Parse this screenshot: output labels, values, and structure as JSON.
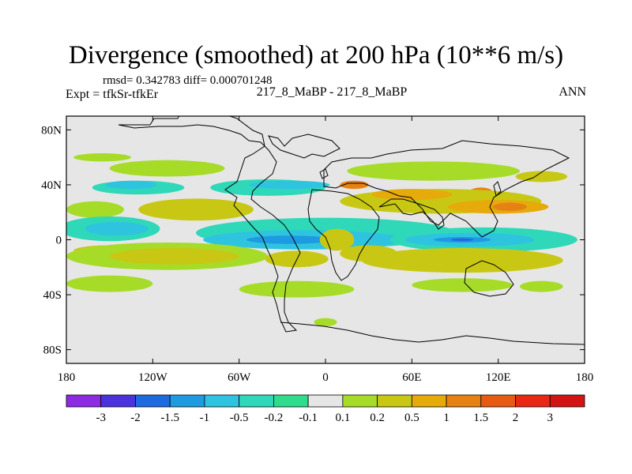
{
  "chart_data": {
    "type": "heatmap",
    "title": "Divergence (smoothed) at 200 hPa (10**6 m/s)",
    "stats_line": "rmsd= 0.342783 diff= 0.000701248",
    "left_label": "Expt = tfkSr-tfkEr",
    "center_label": "217_8_MaBP - 217_8_MaBP",
    "season_label": "ANN",
    "x_ticks": [
      {
        "value": -180,
        "label": "180"
      },
      {
        "value": -120,
        "label": "120W"
      },
      {
        "value": -60,
        "label": "60W"
      },
      {
        "value": 0,
        "label": "0"
      },
      {
        "value": 60,
        "label": "60E"
      },
      {
        "value": 120,
        "label": "120E"
      },
      {
        "value": 180,
        "label": "180"
      }
    ],
    "y_ticks": [
      {
        "value": 80,
        "label": "80N"
      },
      {
        "value": 40,
        "label": "40N"
      },
      {
        "value": 0,
        "label": "0"
      },
      {
        "value": -40,
        "label": "40S"
      },
      {
        "value": -80,
        "label": "80S"
      }
    ],
    "xlim": [
      -180,
      180
    ],
    "ylim": [
      -90,
      90
    ],
    "colorbar": {
      "labels": [
        "-3",
        "-2",
        "-1.5",
        "-1",
        "-0.5",
        "-0.2",
        "-0.1",
        "0.1",
        "0.2",
        "0.5",
        "1",
        "1.5",
        "2",
        "3"
      ],
      "colors": [
        "#8C2BE2",
        "#4B32DC",
        "#1E6BE0",
        "#1E9BE0",
        "#2EC4E0",
        "#2ED8B8",
        "#2EDC8C",
        "#E6E6E6",
        "#A6DC28",
        "#C8C814",
        "#E6AA0A",
        "#E68214",
        "#E65A14",
        "#E62814",
        "#D21414"
      ]
    },
    "features": [
      {
        "level": 0.2,
        "lon": -155,
        "lat": 60,
        "rx": 20,
        "ry": 3
      },
      {
        "level": 0.2,
        "lon": -110,
        "lat": 52,
        "rx": 40,
        "ry": 6
      },
      {
        "level": 0.2,
        "lon": 75,
        "lat": 50,
        "rx": 60,
        "ry": 7
      },
      {
        "level": 0.5,
        "lon": 150,
        "lat": 46,
        "rx": 18,
        "ry": 4
      },
      {
        "level": 1.5,
        "lon": 20,
        "lat": 40,
        "rx": 10,
        "ry": 3
      },
      {
        "level": 1.5,
        "lon": 108,
        "lat": 35,
        "rx": 8,
        "ry": 3
      },
      {
        "level": -0.2,
        "lon": -130,
        "lat": 38,
        "rx": 32,
        "ry": 5
      },
      {
        "level": -0.2,
        "lon": -40,
        "lat": 38,
        "rx": 40,
        "ry": 6
      },
      {
        "level": -0.5,
        "lon": -135,
        "lat": 40,
        "rx": 18,
        "ry": 3
      },
      {
        "level": -0.5,
        "lon": -25,
        "lat": 40,
        "rx": 28,
        "ry": 3
      },
      {
        "level": 0.5,
        "lon": -90,
        "lat": 22,
        "rx": 40,
        "ry": 8
      },
      {
        "level": 0.5,
        "lon": 80,
        "lat": 28,
        "rx": 70,
        "ry": 9
      },
      {
        "level": 1,
        "lon": 120,
        "lat": 24,
        "rx": 35,
        "ry": 5
      },
      {
        "level": 1,
        "lon": 60,
        "lat": 33,
        "rx": 28,
        "ry": 4
      },
      {
        "level": 1.5,
        "lon": 128,
        "lat": 24,
        "rx": 12,
        "ry": 3
      },
      {
        "level": 0.2,
        "lon": -160,
        "lat": 22,
        "rx": 20,
        "ry": 6
      },
      {
        "level": -0.2,
        "lon": -150,
        "lat": 8,
        "rx": 35,
        "ry": 9
      },
      {
        "level": -0.5,
        "lon": -145,
        "lat": 8,
        "rx": 22,
        "ry": 5
      },
      {
        "level": -0.2,
        "lon": 0,
        "lat": 5,
        "rx": 90,
        "ry": 11
      },
      {
        "level": -0.5,
        "lon": -15,
        "lat": 0,
        "rx": 70,
        "ry": 7
      },
      {
        "level": -1,
        "lon": -25,
        "lat": 0,
        "rx": 30,
        "ry": 3
      },
      {
        "level": -0.2,
        "lon": 110,
        "lat": 0,
        "rx": 65,
        "ry": 9
      },
      {
        "level": -0.5,
        "lon": 100,
        "lat": 0,
        "rx": 45,
        "ry": 5
      },
      {
        "level": -1,
        "lon": 95,
        "lat": 0,
        "rx": 20,
        "ry": 2
      },
      {
        "level": -1.5,
        "lon": 95,
        "lat": 0,
        "rx": 8,
        "ry": 1
      },
      {
        "level": 0.5,
        "lon": 8,
        "lat": 0,
        "rx": 12,
        "ry": 8
      },
      {
        "level": 0.5,
        "lon": -150,
        "lat": -8,
        "rx": 25,
        "ry": 4
      },
      {
        "level": 0.2,
        "lon": -110,
        "lat": -12,
        "rx": 70,
        "ry": 10
      },
      {
        "level": 0.5,
        "lon": -105,
        "lat": -12,
        "rx": 45,
        "ry": 6
      },
      {
        "level": 0.5,
        "lon": -20,
        "lat": -14,
        "rx": 22,
        "ry": 6
      },
      {
        "level": 0.5,
        "lon": 30,
        "lat": -10,
        "rx": 20,
        "ry": 6
      },
      {
        "level": 0.5,
        "lon": 95,
        "lat": -15,
        "rx": 70,
        "ry": 9
      },
      {
        "level": 0.2,
        "lon": -150,
        "lat": -32,
        "rx": 30,
        "ry": 6
      },
      {
        "level": 0.2,
        "lon": -20,
        "lat": -36,
        "rx": 40,
        "ry": 6
      },
      {
        "level": 0.2,
        "lon": 95,
        "lat": -33,
        "rx": 35,
        "ry": 5
      },
      {
        "level": 0.2,
        "lon": 150,
        "lat": -34,
        "rx": 15,
        "ry": 4
      },
      {
        "level": 0.2,
        "lon": 0,
        "lat": -60,
        "rx": 8,
        "ry": 3
      }
    ]
  }
}
